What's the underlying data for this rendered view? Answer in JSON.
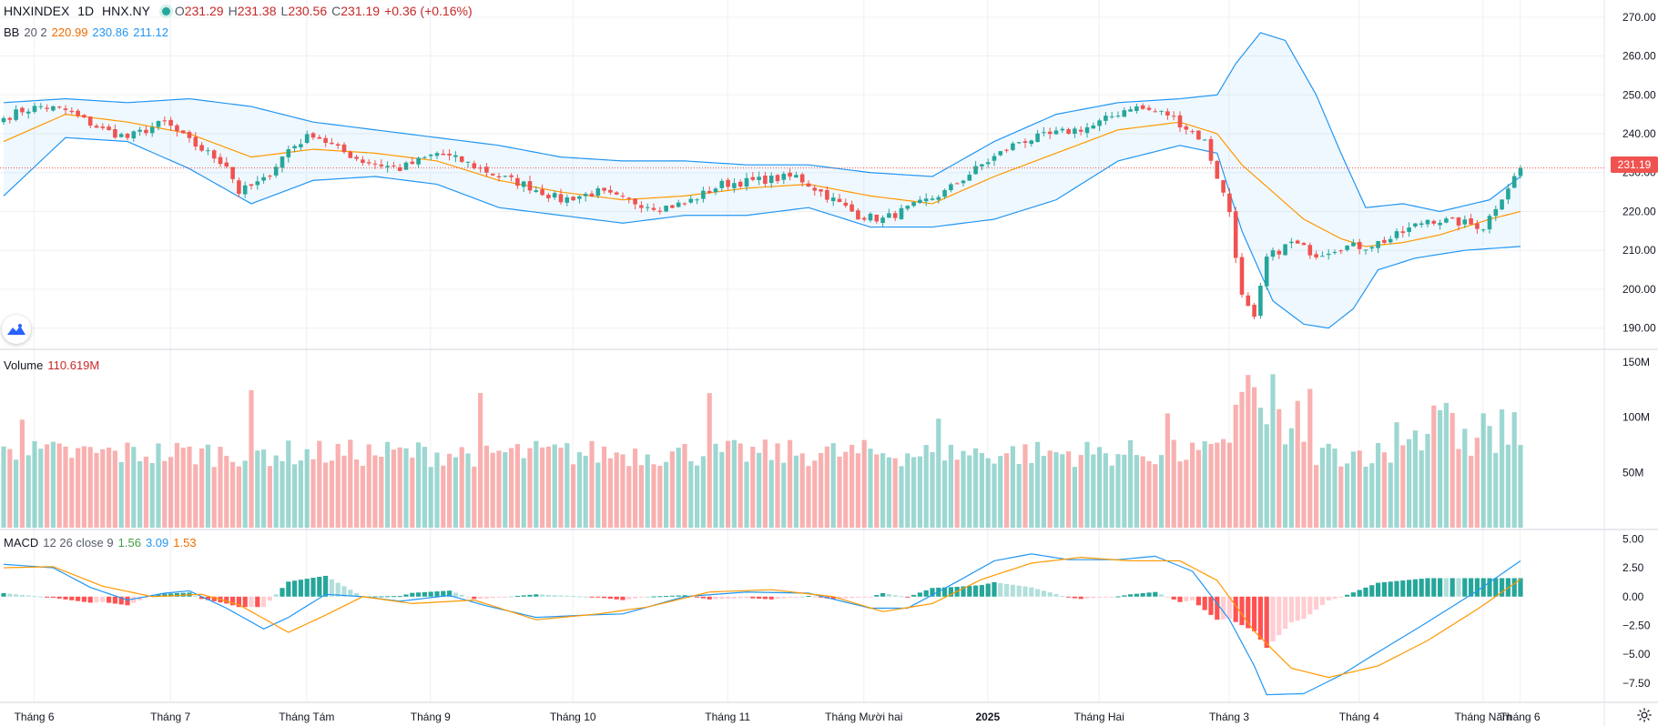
{
  "header": {
    "symbol": "HNXINDEX",
    "interval": "1D",
    "exchange": "HNX.NY",
    "ohlc": {
      "o_label": "O",
      "o": "231.29",
      "h_label": "H",
      "h": "231.38",
      "l_label": "L",
      "l": "230.56",
      "c_label": "C",
      "c": "231.19",
      "change": "+0.36 (+0.16%)"
    }
  },
  "bb_legend": {
    "name": "BB",
    "params": "20 2",
    "basis": "220.99",
    "upper": "230.86",
    "lower": "211.12"
  },
  "volume_legend": {
    "name": "Volume",
    "value": "110.619M"
  },
  "macd_legend": {
    "name": "MACD",
    "params": "12 26 close 9",
    "hist": "1.56",
    "macd": "3.09",
    "signal": "1.53"
  },
  "current_price_label": "231.19",
  "colors": {
    "up": "#26a69a",
    "down": "#ef5350",
    "bb_basis": "#ff9800",
    "bb_band": "#2196f3",
    "macd_line": "#2196f3",
    "signal_line": "#ff9800"
  },
  "icons": {
    "logo": "tradingview-logo-icon",
    "settings": "gear-icon"
  },
  "chart_data": [
    {
      "type": "candlestick",
      "panel": "price",
      "yticks": [
        "270.00",
        "260.00",
        "250.00",
        "240.00",
        "230.00",
        "220.00",
        "210.00",
        "200.00",
        "190.00"
      ],
      "ylim": [
        185,
        273
      ],
      "xticks": [
        "Tháng 6",
        "Tháng 7",
        "Tháng Tám",
        "Tháng 9",
        "Tháng 10",
        "Tháng 11",
        "Tháng Mười hai",
        "2025",
        "Tháng Hai",
        "Tháng 3",
        "Tháng 4",
        "Tháng Năm",
        "Tháng 6"
      ],
      "close_anchors": [
        [
          0,
          244
        ],
        [
          3,
          246
        ],
        [
          6,
          247
        ],
        [
          10,
          246
        ],
        [
          16,
          241
        ],
        [
          20,
          239
        ],
        [
          26,
          243
        ],
        [
          30,
          238
        ],
        [
          36,
          232
        ],
        [
          38,
          225
        ],
        [
          42,
          228
        ],
        [
          46,
          236
        ],
        [
          50,
          240
        ],
        [
          54,
          236
        ],
        [
          58,
          233
        ],
        [
          64,
          231
        ],
        [
          70,
          235
        ],
        [
          74,
          233
        ],
        [
          80,
          229
        ],
        [
          84,
          227
        ],
        [
          90,
          223
        ],
        [
          96,
          225
        ],
        [
          100,
          223
        ],
        [
          106,
          221
        ],
        [
          110,
          222
        ],
        [
          116,
          227
        ],
        [
          122,
          228
        ],
        [
          128,
          229
        ],
        [
          132,
          225
        ],
        [
          138,
          219
        ],
        [
          142,
          218
        ],
        [
          148,
          222
        ],
        [
          152,
          225
        ],
        [
          158,
          232
        ],
        [
          164,
          238
        ],
        [
          170,
          240
        ],
        [
          176,
          242
        ],
        [
          182,
          247
        ],
        [
          188,
          245
        ],
        [
          194,
          238
        ],
        [
          198,
          220
        ],
        [
          200,
          198
        ],
        [
          202,
          192
        ],
        [
          204,
          208
        ],
        [
          208,
          212
        ],
        [
          212,
          209
        ],
        [
          216,
          211
        ],
        [
          220,
          211
        ],
        [
          224,
          213
        ],
        [
          230,
          218
        ],
        [
          236,
          217
        ],
        [
          239,
          216
        ],
        [
          242,
          224
        ],
        [
          245,
          231.19
        ]
      ],
      "bb_upper_anchors": [
        [
          0,
          248
        ],
        [
          10,
          249
        ],
        [
          20,
          248
        ],
        [
          30,
          249
        ],
        [
          40,
          247
        ],
        [
          50,
          243
        ],
        [
          60,
          241
        ],
        [
          70,
          239
        ],
        [
          80,
          237
        ],
        [
          90,
          234
        ],
        [
          100,
          233
        ],
        [
          110,
          233
        ],
        [
          120,
          232
        ],
        [
          130,
          232
        ],
        [
          140,
          230
        ],
        [
          150,
          229
        ],
        [
          160,
          238
        ],
        [
          170,
          245
        ],
        [
          180,
          248
        ],
        [
          190,
          249
        ],
        [
          196,
          250
        ],
        [
          199,
          258
        ],
        [
          203,
          266
        ],
        [
          207,
          264
        ],
        [
          212,
          250
        ],
        [
          216,
          235
        ],
        [
          220,
          221
        ],
        [
          226,
          222
        ],
        [
          232,
          220
        ],
        [
          240,
          223
        ],
        [
          245,
          229
        ]
      ],
      "bb_basis_anchors": [
        [
          0,
          238
        ],
        [
          10,
          245
        ],
        [
          20,
          243
        ],
        [
          30,
          240
        ],
        [
          40,
          234
        ],
        [
          50,
          236
        ],
        [
          60,
          235
        ],
        [
          70,
          233
        ],
        [
          80,
          228
        ],
        [
          90,
          225
        ],
        [
          100,
          223
        ],
        [
          110,
          224
        ],
        [
          120,
          226
        ],
        [
          130,
          227
        ],
        [
          140,
          224
        ],
        [
          150,
          222
        ],
        [
          160,
          229
        ],
        [
          170,
          235
        ],
        [
          180,
          241
        ],
        [
          190,
          243
        ],
        [
          196,
          240
        ],
        [
          200,
          232
        ],
        [
          205,
          225
        ],
        [
          210,
          218
        ],
        [
          216,
          213
        ],
        [
          220,
          211
        ],
        [
          226,
          212
        ],
        [
          232,
          214
        ],
        [
          240,
          218
        ],
        [
          245,
          220
        ]
      ],
      "bb_lower_anchors": [
        [
          0,
          224
        ],
        [
          10,
          239
        ],
        [
          20,
          238
        ],
        [
          30,
          231
        ],
        [
          40,
          222
        ],
        [
          50,
          228
        ],
        [
          60,
          229
        ],
        [
          70,
          227
        ],
        [
          80,
          221
        ],
        [
          90,
          219
        ],
        [
          100,
          217
        ],
        [
          110,
          219
        ],
        [
          120,
          219
        ],
        [
          130,
          221
        ],
        [
          140,
          216
        ],
        [
          150,
          216
        ],
        [
          160,
          218
        ],
        [
          170,
          223
        ],
        [
          180,
          233
        ],
        [
          190,
          237
        ],
        [
          196,
          235
        ],
        [
          200,
          215
        ],
        [
          205,
          197
        ],
        [
          210,
          191
        ],
        [
          214,
          190
        ],
        [
          218,
          195
        ],
        [
          222,
          205
        ],
        [
          228,
          208
        ],
        [
          236,
          210
        ],
        [
          245,
          211
        ]
      ]
    },
    {
      "type": "bar",
      "panel": "volume",
      "name": "Volume",
      "yticks": [
        "150M",
        "100M",
        "50M"
      ],
      "ylim": [
        0,
        155
      ]
    },
    {
      "type": "line",
      "panel": "macd",
      "name": "MACD",
      "yticks": [
        "5.00",
        "2.50",
        "0.00",
        "−2.50",
        "−5.00",
        "−7.50"
      ],
      "ylim": [
        -9,
        5.5
      ],
      "macd_anchors": [
        [
          0,
          2.8
        ],
        [
          8,
          2.5
        ],
        [
          14,
          0.8
        ],
        [
          20,
          -0.3
        ],
        [
          26,
          0.3
        ],
        [
          30,
          0.5
        ],
        [
          36,
          -1.0
        ],
        [
          42,
          -2.8
        ],
        [
          46,
          -1.8
        ],
        [
          52,
          0.2
        ],
        [
          58,
          0.0
        ],
        [
          64,
          -0.4
        ],
        [
          72,
          0.1
        ],
        [
          78,
          -0.8
        ],
        [
          86,
          -1.8
        ],
        [
          94,
          -1.6
        ],
        [
          100,
          -1.5
        ],
        [
          110,
          0.0
        ],
        [
          120,
          0.4
        ],
        [
          130,
          0.3
        ],
        [
          140,
          -1.0
        ],
        [
          146,
          -1.0
        ],
        [
          154,
          1.3
        ],
        [
          160,
          3.1
        ],
        [
          166,
          3.7
        ],
        [
          172,
          3.2
        ],
        [
          180,
          3.2
        ],
        [
          186,
          3.5
        ],
        [
          192,
          2.2
        ],
        [
          198,
          -2.0
        ],
        [
          202,
          -6.0
        ],
        [
          204,
          -8.5
        ],
        [
          210,
          -8.4
        ],
        [
          216,
          -6.8
        ],
        [
          222,
          -4.8
        ],
        [
          230,
          -2.2
        ],
        [
          238,
          0.5
        ],
        [
          245,
          3.1
        ]
      ],
      "signal_anchors": [
        [
          0,
          2.5
        ],
        [
          8,
          2.6
        ],
        [
          16,
          0.9
        ],
        [
          24,
          0.0
        ],
        [
          32,
          0.2
        ],
        [
          38,
          -0.7
        ],
        [
          46,
          -3.1
        ],
        [
          52,
          -1.6
        ],
        [
          58,
          0.0
        ],
        [
          66,
          -0.6
        ],
        [
          76,
          -0.3
        ],
        [
          86,
          -2.0
        ],
        [
          96,
          -1.5
        ],
        [
          104,
          -0.9
        ],
        [
          114,
          0.4
        ],
        [
          124,
          0.6
        ],
        [
          134,
          0.0
        ],
        [
          142,
          -1.3
        ],
        [
          150,
          -0.6
        ],
        [
          158,
          1.5
        ],
        [
          166,
          2.9
        ],
        [
          174,
          3.4
        ],
        [
          182,
          3.1
        ],
        [
          190,
          3.1
        ],
        [
          196,
          1.4
        ],
        [
          202,
          -3.0
        ],
        [
          208,
          -6.2
        ],
        [
          214,
          -7.0
        ],
        [
          222,
          -6.0
        ],
        [
          230,
          -3.8
        ],
        [
          238,
          -1.1
        ],
        [
          245,
          1.5
        ]
      ]
    }
  ]
}
